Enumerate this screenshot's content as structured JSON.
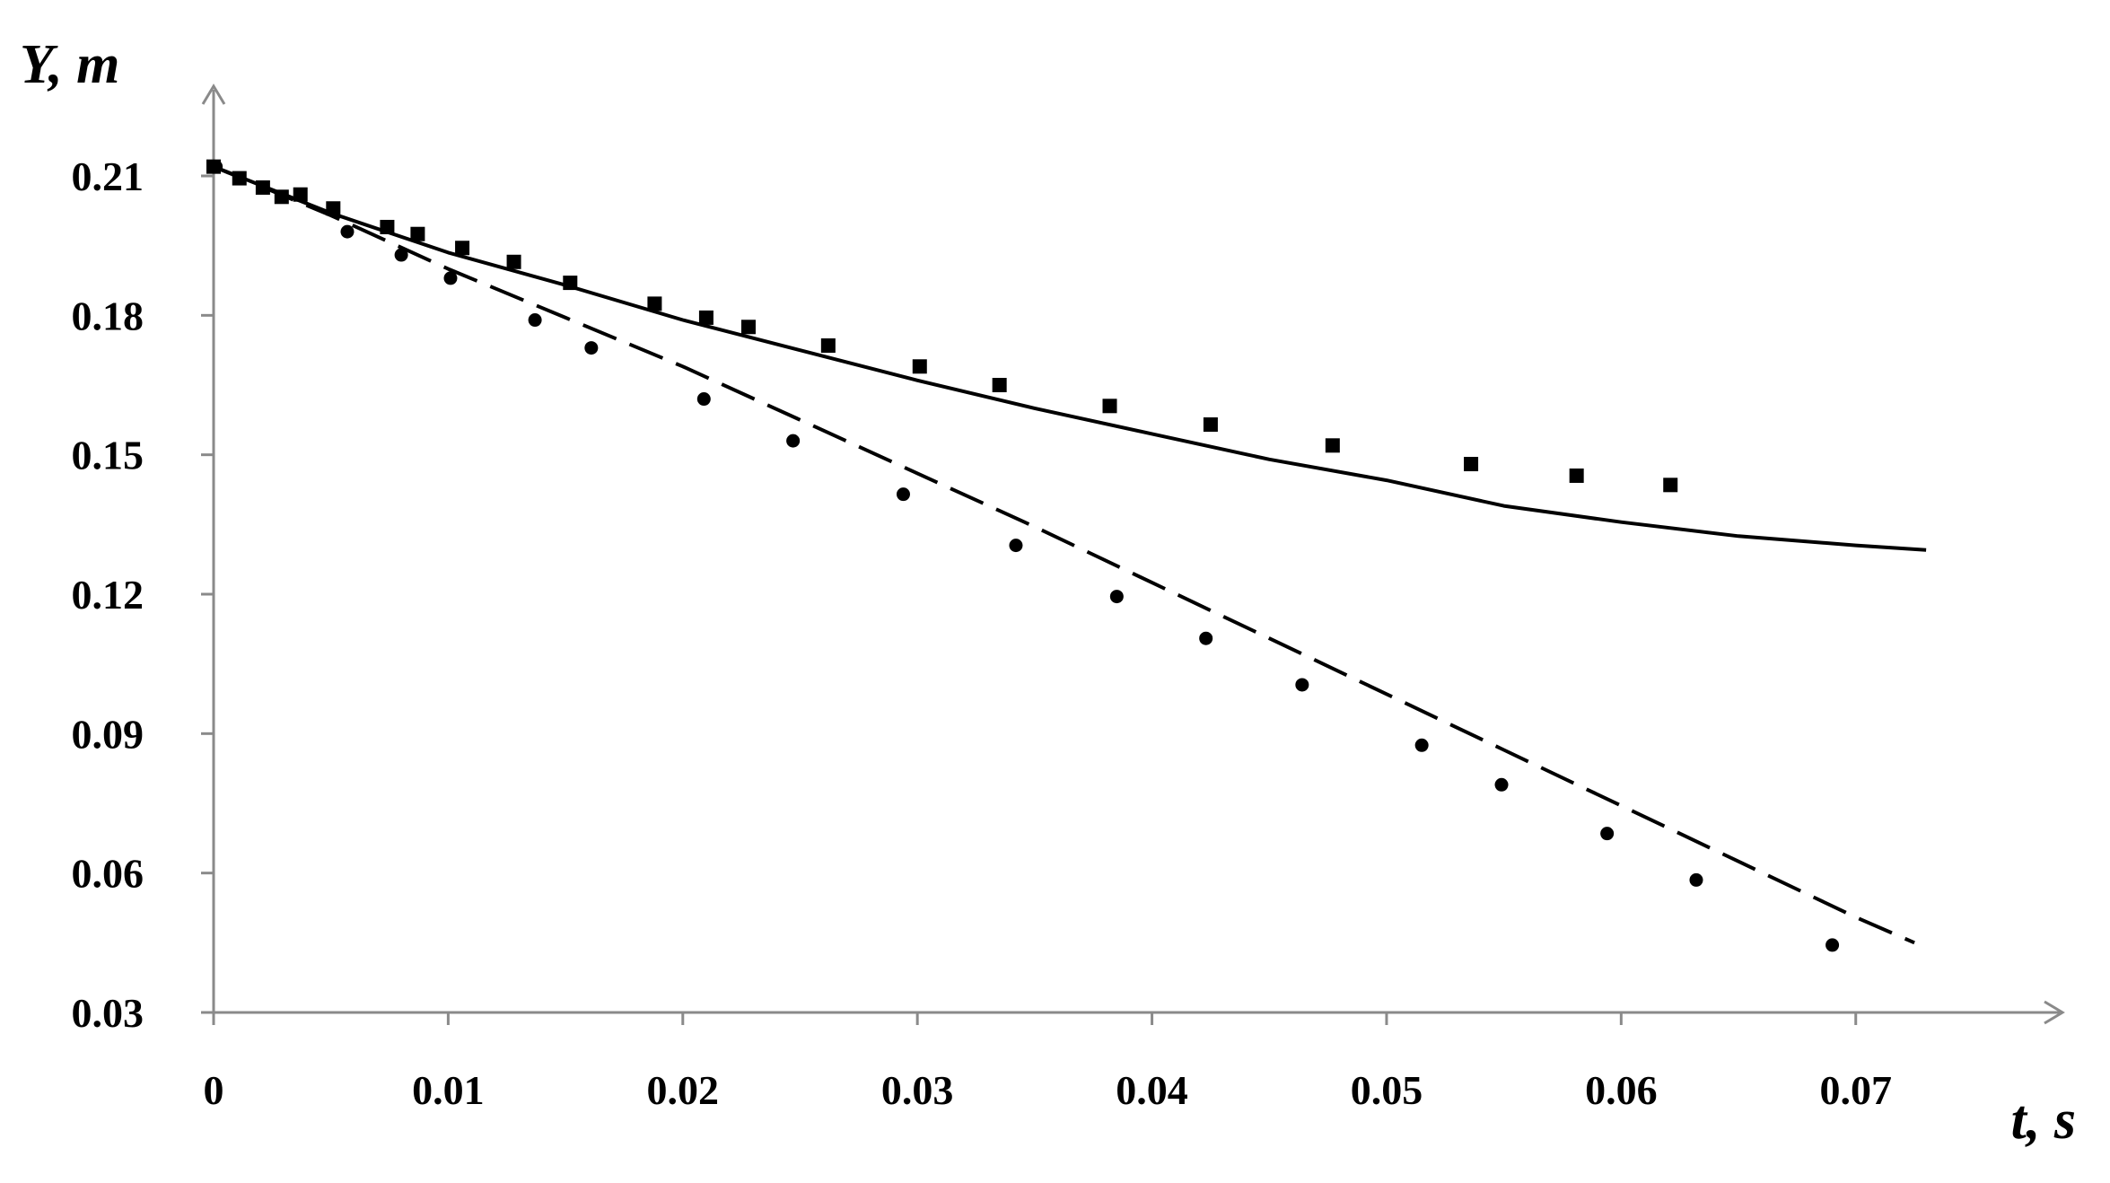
{
  "chart_data": {
    "type": "scatter",
    "xlabel": "t, s",
    "ylabel": "Y, m",
    "xlim": [
      0,
      0.079
    ],
    "ylim": [
      0.03,
      0.23
    ],
    "x_ticks": [
      0,
      0.01,
      0.02,
      0.03,
      0.04,
      0.05,
      0.06,
      0.07
    ],
    "x_tick_labels": [
      "0",
      "0.01",
      "0.02",
      "0.03",
      "0.04",
      "0.05",
      "0.06",
      "0.07"
    ],
    "y_ticks": [
      0.03,
      0.06,
      0.09,
      0.12,
      0.15,
      0.18,
      0.21
    ],
    "y_tick_labels": [
      "0.03",
      "0.06",
      "0.09",
      "0.12",
      "0.15",
      "0.18",
      "0.21"
    ],
    "grid": false,
    "legend": "none",
    "series": [
      {
        "style": "line-solid",
        "color": "#000000",
        "x": [
          0,
          0.005,
          0.01,
          0.015,
          0.02,
          0.025,
          0.03,
          0.035,
          0.04,
          0.045,
          0.05,
          0.055,
          0.06,
          0.065,
          0.07,
          0.073
        ],
        "y": [
          0.212,
          0.202,
          0.1935,
          0.1865,
          0.179,
          0.1725,
          0.166,
          0.16,
          0.1545,
          0.149,
          0.1445,
          0.139,
          0.1355,
          0.1325,
          0.1305,
          0.1295
        ]
      },
      {
        "style": "line-dashed",
        "color": "#000000",
        "x": [
          0,
          0.005,
          0.01,
          0.015,
          0.02,
          0.025,
          0.03,
          0.035,
          0.04,
          0.045,
          0.05,
          0.055,
          0.06,
          0.065,
          0.07,
          0.0725
        ],
        "y": [
          0.212,
          0.2015,
          0.19,
          0.1795,
          0.169,
          0.1575,
          0.146,
          0.1345,
          0.1225,
          0.1105,
          0.0985,
          0.0865,
          0.0745,
          0.0625,
          0.0505,
          0.045
        ]
      },
      {
        "style": "marker-square",
        "color": "#000000",
        "x": [
          0.0,
          0.0011,
          0.0021,
          0.0029,
          0.0037,
          0.0051,
          0.0074,
          0.0087,
          0.0106,
          0.0128,
          0.0152,
          0.0188,
          0.021,
          0.0228,
          0.0262,
          0.0301,
          0.0335,
          0.0382,
          0.0425,
          0.0477,
          0.0536,
          0.0581,
          0.0621
        ],
        "y": [
          0.212,
          0.2095,
          0.2075,
          0.2055,
          0.206,
          0.203,
          0.199,
          0.1975,
          0.1945,
          0.1915,
          0.187,
          0.1825,
          0.1795,
          0.1775,
          0.1735,
          0.169,
          0.165,
          0.1605,
          0.1565,
          0.152,
          0.148,
          0.1455,
          0.1435
        ]
      },
      {
        "style": "marker-circle",
        "color": "#000000",
        "x": [
          0.0001,
          0.0057,
          0.008,
          0.0101,
          0.0137,
          0.0161,
          0.0209,
          0.0247,
          0.0294,
          0.0342,
          0.0385,
          0.0423,
          0.0464,
          0.0515,
          0.0549,
          0.0594,
          0.0632,
          0.069
        ],
        "y": [
          0.212,
          0.198,
          0.193,
          0.188,
          0.179,
          0.173,
          0.162,
          0.153,
          0.1415,
          0.1305,
          0.1195,
          0.1105,
          0.1005,
          0.0875,
          0.079,
          0.0685,
          0.0585,
          0.0445
        ]
      }
    ]
  }
}
